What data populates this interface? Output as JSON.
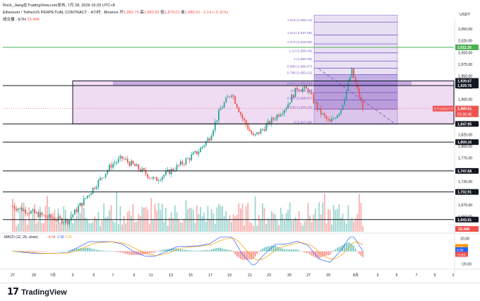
{
  "header": {
    "author_line": "Rock_Jiang在TradingView.com发布, 7月 28, 2026 16:23 UTC+8",
    "symbol": "Ethereum / TetherUS PERPETUAL CONTRACT · 4小时 · Binance",
    "ohlc": {
      "open_label": "开",
      "open": "1,882.75",
      "high_label": "高",
      "high": "1,883.82",
      "low_label": "低",
      "low": "1,879.01",
      "close_label": "收",
      "close": "1,880.61",
      "change": "−2.14 (−0.11%)"
    },
    "volume_label": "成交量 · ETH",
    "volume_value": "33.44K"
  },
  "currency": "USDT",
  "colors": {
    "up": "#26a69a",
    "down": "#ef5350",
    "fib": "#7e57c2",
    "box_fill": "#e1bee7",
    "green_line": "#4caf50"
  },
  "chart_data": {
    "type": "candlestick",
    "timeframe": "4h",
    "price_axis": {
      "unit": "USDT",
      "ylim": [
        1618,
        2070
      ],
      "ticks": [
        "2,050.00",
        "2,025.00",
        "2,000.00",
        "1,975.00",
        "1,950.00",
        "1,925.00",
        "1,900.00",
        "1,875.00",
        "1,850.00",
        "1,825.00",
        "1,800.00",
        "1,775.00",
        "1,750.00",
        "1,725.00",
        "1,700.00",
        "1,675.00",
        "1,650.00"
      ]
    },
    "x_axis": {
      "labels": [
        "27",
        "29",
        "7月",
        "3",
        "5",
        "7",
        "9",
        "11",
        "13",
        "15",
        "17",
        "19",
        "21",
        "23",
        "25",
        "27",
        "29",
        "8月",
        "3",
        "5",
        "7",
        "9",
        "1"
      ]
    },
    "ohlc_keypoints": [
      {
        "date": "06-26",
        "close": 1672
      },
      {
        "date": "06-29",
        "close": 1650
      },
      {
        "date": "07-01",
        "close": 1640
      },
      {
        "date": "07-03",
        "close": 1700
      },
      {
        "date": "07-05",
        "close": 1760
      },
      {
        "date": "07-06",
        "close": 1775
      },
      {
        "date": "07-08",
        "close": 1745
      },
      {
        "date": "07-09",
        "close": 1728
      },
      {
        "date": "07-11",
        "close": 1756
      },
      {
        "date": "07-13",
        "close": 1790
      },
      {
        "date": "07-14",
        "close": 1820
      },
      {
        "date": "07-15",
        "close": 1880
      },
      {
        "date": "07-16",
        "close": 1915
      },
      {
        "date": "07-17",
        "close": 1860
      },
      {
        "date": "07-18",
        "close": 1820
      },
      {
        "date": "07-19",
        "close": 1840
      },
      {
        "date": "07-21",
        "close": 1885
      },
      {
        "date": "07-22",
        "close": 1925
      },
      {
        "date": "07-23",
        "close": 1920
      },
      {
        "date": "07-24",
        "close": 1875
      },
      {
        "date": "07-25",
        "close": 1850
      },
      {
        "date": "07-26",
        "close": 1880
      },
      {
        "date": "07-27",
        "close": 1960
      },
      {
        "date": "07-28",
        "close": 1880.61
      }
    ],
    "horizontal_levels": [
      {
        "price": 2011.25,
        "label": "2,011.25",
        "color": "#4caf50"
      },
      {
        "price": 1939.67,
        "label": "1,939.67",
        "color": "#131722"
      },
      {
        "price": 1929.76,
        "label": "1,929.76",
        "color": "#131722"
      },
      {
        "price": 1847.95,
        "label": "1,847.95",
        "color": "#131722"
      },
      {
        "price": 1809.16,
        "label": "1,809.16",
        "color": "#131722"
      },
      {
        "price": 1747.68,
        "label": "1,747.68",
        "color": "#131722"
      },
      {
        "price": 1702.91,
        "label": "1,702.91",
        "color": "#131722"
      },
      {
        "price": 1643.91,
        "label": "1,643.91",
        "color": "#131722"
      }
    ],
    "fib_levels": [
      {
        "ratio": "1.618",
        "price": 2065.13
      },
      {
        "ratio": "1.414",
        "price": 2037.69
      },
      {
        "ratio": "1.272",
        "price": 2018.59
      },
      {
        "ratio": "1.13",
        "price": 1999.49
      },
      {
        "ratio": "1",
        "price": 1982.0
      },
      {
        "ratio": "0.886",
        "price": 1966.67
      },
      {
        "ratio": "0.786",
        "price": 1953.22
      },
      {
        "ratio": "0.618",
        "price": 1930.62
      },
      {
        "ratio": "0.5",
        "price": 1914.75
      },
      {
        "ratio": "0.382",
        "price": 1898.87
      },
      {
        "ratio": "0.236",
        "price": 1879.23
      },
      {
        "ratio": "0",
        "price": 1847.49
      }
    ],
    "price_tag": {
      "symbol": "ETHUSDT.P",
      "price": "1,880.61",
      "countdown": "03:36:46"
    },
    "volume_tag": "33.44K",
    "macd": {
      "label": "MACD (12, 26, close)",
      "values": [
        "−4.94",
        "2.36",
        "7.31"
      ],
      "ticks": [
        "20.00",
        "0.00",
        "−20.00"
      ],
      "ylim": [
        -25,
        25
      ]
    }
  }
}
